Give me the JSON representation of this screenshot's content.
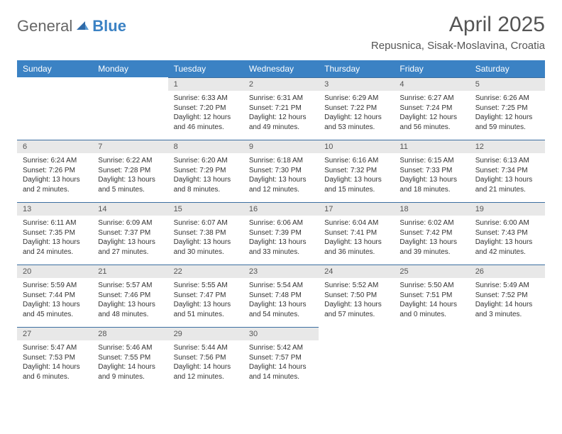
{
  "brand": {
    "part1": "General",
    "part2": "Blue"
  },
  "title": "April 2025",
  "location": "Repusnica, Sisak-Moslavina, Croatia",
  "colors": {
    "header_bg": "#3b82c4",
    "header_text": "#ffffff",
    "daynum_bg": "#e8e8e8",
    "border_top": "#3b6ea0",
    "text": "#333333",
    "title_color": "#555555"
  },
  "weekdays": [
    "Sunday",
    "Monday",
    "Tuesday",
    "Wednesday",
    "Thursday",
    "Friday",
    "Saturday"
  ],
  "weeks": [
    [
      null,
      null,
      {
        "n": "1",
        "sr": "6:33 AM",
        "ss": "7:20 PM",
        "dl": "12 hours and 46 minutes."
      },
      {
        "n": "2",
        "sr": "6:31 AM",
        "ss": "7:21 PM",
        "dl": "12 hours and 49 minutes."
      },
      {
        "n": "3",
        "sr": "6:29 AM",
        "ss": "7:22 PM",
        "dl": "12 hours and 53 minutes."
      },
      {
        "n": "4",
        "sr": "6:27 AM",
        "ss": "7:24 PM",
        "dl": "12 hours and 56 minutes."
      },
      {
        "n": "5",
        "sr": "6:26 AM",
        "ss": "7:25 PM",
        "dl": "12 hours and 59 minutes."
      }
    ],
    [
      {
        "n": "6",
        "sr": "6:24 AM",
        "ss": "7:26 PM",
        "dl": "13 hours and 2 minutes."
      },
      {
        "n": "7",
        "sr": "6:22 AM",
        "ss": "7:28 PM",
        "dl": "13 hours and 5 minutes."
      },
      {
        "n": "8",
        "sr": "6:20 AM",
        "ss": "7:29 PM",
        "dl": "13 hours and 8 minutes."
      },
      {
        "n": "9",
        "sr": "6:18 AM",
        "ss": "7:30 PM",
        "dl": "13 hours and 12 minutes."
      },
      {
        "n": "10",
        "sr": "6:16 AM",
        "ss": "7:32 PM",
        "dl": "13 hours and 15 minutes."
      },
      {
        "n": "11",
        "sr": "6:15 AM",
        "ss": "7:33 PM",
        "dl": "13 hours and 18 minutes."
      },
      {
        "n": "12",
        "sr": "6:13 AM",
        "ss": "7:34 PM",
        "dl": "13 hours and 21 minutes."
      }
    ],
    [
      {
        "n": "13",
        "sr": "6:11 AM",
        "ss": "7:35 PM",
        "dl": "13 hours and 24 minutes."
      },
      {
        "n": "14",
        "sr": "6:09 AM",
        "ss": "7:37 PM",
        "dl": "13 hours and 27 minutes."
      },
      {
        "n": "15",
        "sr": "6:07 AM",
        "ss": "7:38 PM",
        "dl": "13 hours and 30 minutes."
      },
      {
        "n": "16",
        "sr": "6:06 AM",
        "ss": "7:39 PM",
        "dl": "13 hours and 33 minutes."
      },
      {
        "n": "17",
        "sr": "6:04 AM",
        "ss": "7:41 PM",
        "dl": "13 hours and 36 minutes."
      },
      {
        "n": "18",
        "sr": "6:02 AM",
        "ss": "7:42 PM",
        "dl": "13 hours and 39 minutes."
      },
      {
        "n": "19",
        "sr": "6:00 AM",
        "ss": "7:43 PM",
        "dl": "13 hours and 42 minutes."
      }
    ],
    [
      {
        "n": "20",
        "sr": "5:59 AM",
        "ss": "7:44 PM",
        "dl": "13 hours and 45 minutes."
      },
      {
        "n": "21",
        "sr": "5:57 AM",
        "ss": "7:46 PM",
        "dl": "13 hours and 48 minutes."
      },
      {
        "n": "22",
        "sr": "5:55 AM",
        "ss": "7:47 PM",
        "dl": "13 hours and 51 minutes."
      },
      {
        "n": "23",
        "sr": "5:54 AM",
        "ss": "7:48 PM",
        "dl": "13 hours and 54 minutes."
      },
      {
        "n": "24",
        "sr": "5:52 AM",
        "ss": "7:50 PM",
        "dl": "13 hours and 57 minutes."
      },
      {
        "n": "25",
        "sr": "5:50 AM",
        "ss": "7:51 PM",
        "dl": "14 hours and 0 minutes."
      },
      {
        "n": "26",
        "sr": "5:49 AM",
        "ss": "7:52 PM",
        "dl": "14 hours and 3 minutes."
      }
    ],
    [
      {
        "n": "27",
        "sr": "5:47 AM",
        "ss": "7:53 PM",
        "dl": "14 hours and 6 minutes."
      },
      {
        "n": "28",
        "sr": "5:46 AM",
        "ss": "7:55 PM",
        "dl": "14 hours and 9 minutes."
      },
      {
        "n": "29",
        "sr": "5:44 AM",
        "ss": "7:56 PM",
        "dl": "14 hours and 12 minutes."
      },
      {
        "n": "30",
        "sr": "5:42 AM",
        "ss": "7:57 PM",
        "dl": "14 hours and 14 minutes."
      },
      null,
      null,
      null
    ]
  ]
}
